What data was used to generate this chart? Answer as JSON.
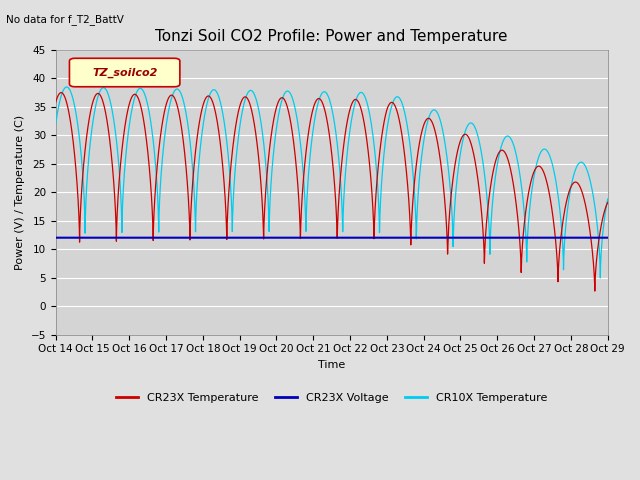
{
  "title": "Tonzi Soil CO2 Profile: Power and Temperature",
  "no_data_text": "No data for f_T2_BattV",
  "ylabel": "Power (V) / Temperature (C)",
  "xlabel": "Time",
  "ylim": [
    -5,
    45
  ],
  "xlim": [
    0,
    15
  ],
  "yticks": [
    -5,
    0,
    5,
    10,
    15,
    20,
    25,
    30,
    35,
    40,
    45
  ],
  "xtick_labels": [
    "Oct 14",
    "Oct 15",
    "Oct 16",
    "Oct 17",
    "Oct 18",
    "Oct 19",
    "Oct 20",
    "Oct 21",
    "Oct 22",
    "Oct 23",
    "Oct 24",
    "Oct 25",
    "Oct 26",
    "Oct 27",
    "Oct 28",
    "Oct 29"
  ],
  "legend_box_text": "TZ_soilco2",
  "legend_entries": [
    "CR23X Temperature",
    "CR23X Voltage",
    "CR10X Temperature"
  ],
  "line_colors": [
    "#cc0000",
    "#0000bb",
    "#00ccee"
  ],
  "background_color": "#e0e0e0",
  "plot_bg_color": "#d4d4d4",
  "title_fontsize": 11,
  "axis_fontsize": 8,
  "tick_fontsize": 7.5
}
